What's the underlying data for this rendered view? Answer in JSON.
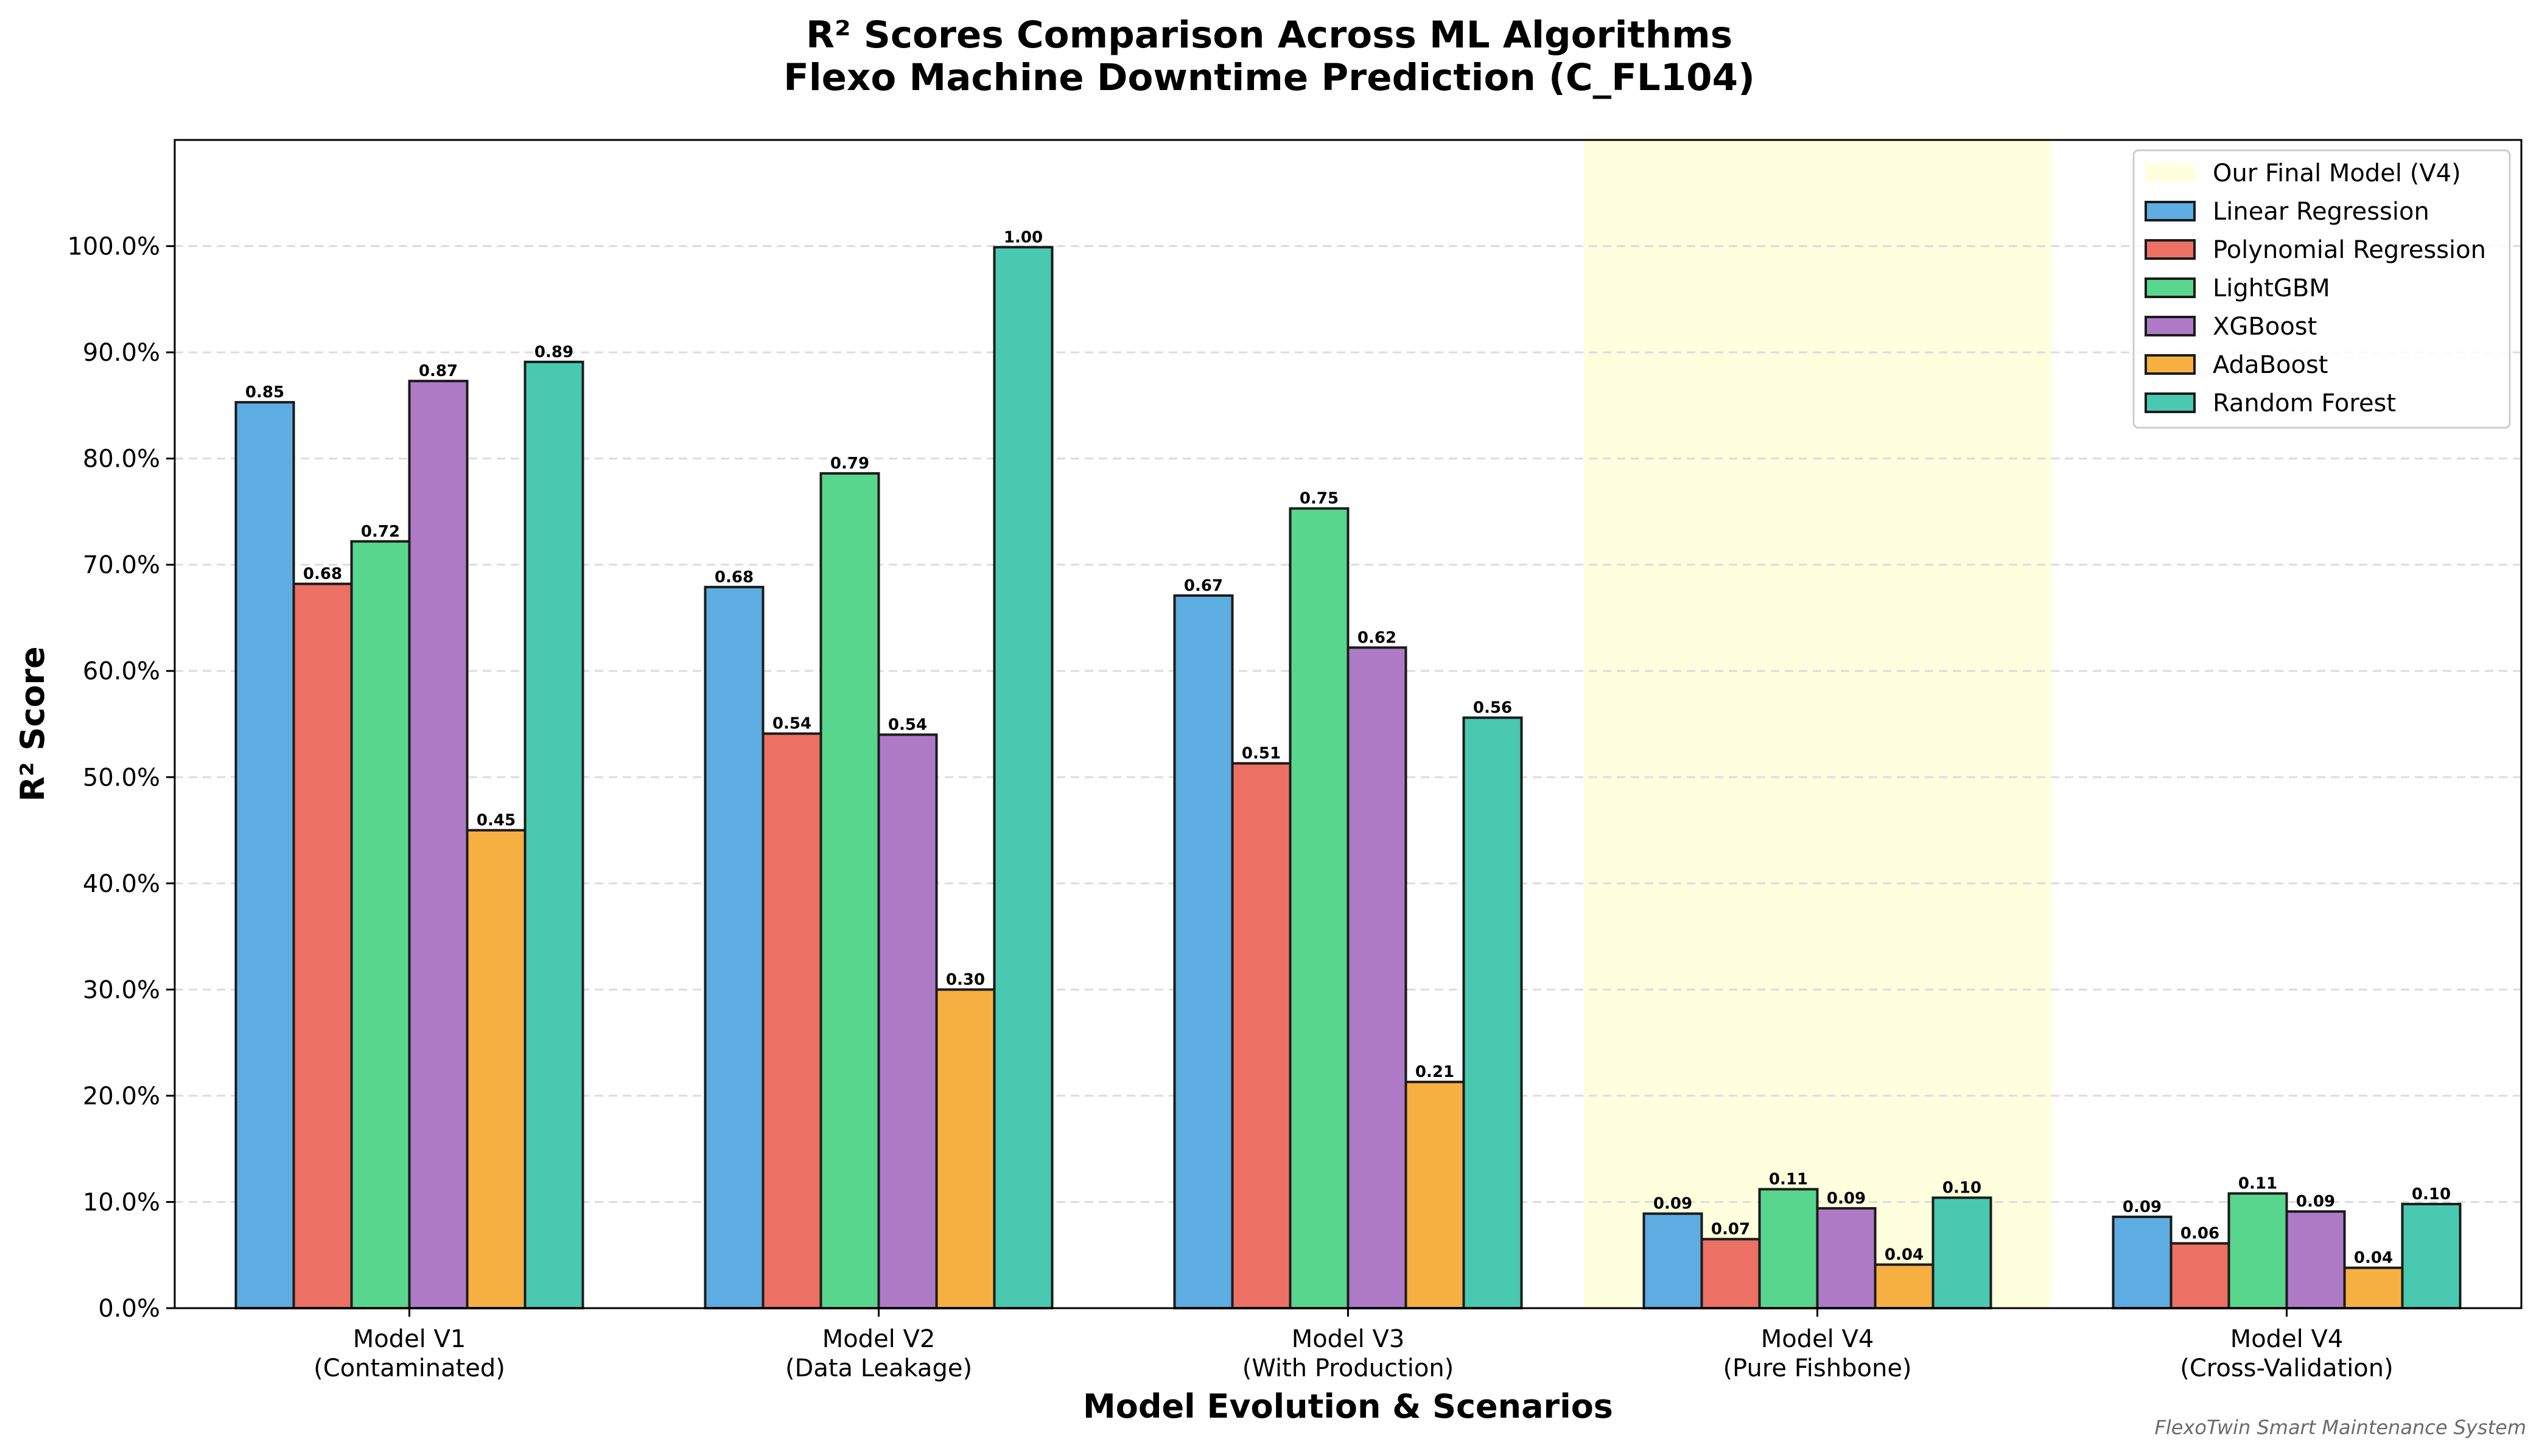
{
  "chart_data": {
    "type": "bar",
    "title": [
      "R² Scores Comparison Across ML Algorithms",
      "Flexo Machine Downtime Prediction (C_FL104)"
    ],
    "xlabel": "Model Evolution & Scenarios",
    "ylabel": "R² Score",
    "ylim": [
      0,
      1.1
    ],
    "yticks": [
      0.0,
      0.1,
      0.2,
      0.3,
      0.4,
      0.5,
      0.6,
      0.7,
      0.8,
      0.9,
      1.0
    ],
    "ytick_labels": [
      "0.0%",
      "10.0%",
      "20.0%",
      "30.0%",
      "40.0%",
      "50.0%",
      "60.0%",
      "70.0%",
      "80.0%",
      "90.0%",
      "100.0%"
    ],
    "grid": "horizontal dashed",
    "legend_position": "top-right",
    "categories": [
      [
        "Model V1",
        "(Contaminated)"
      ],
      [
        "Model V2",
        "(Data Leakage)"
      ],
      [
        "Model V3",
        "(With Production)"
      ],
      [
        "Model V4",
        "(Pure Fishbone)"
      ],
      [
        "Model V4",
        "(Cross-Validation)"
      ]
    ],
    "highlight": {
      "label": "Our Final Model (V4)",
      "category_index": 3,
      "color": "#ffffdd"
    },
    "series": [
      {
        "name": "Linear Regression",
        "color": "#5dade2",
        "values": [
          0.853,
          0.679,
          0.671,
          0.089,
          0.086
        ],
        "labels": [
          "0.85",
          "0.68",
          "0.67",
          "0.09",
          "0.09"
        ]
      },
      {
        "name": "Polynomial Regression",
        "color": "#ec7063",
        "values": [
          0.682,
          0.541,
          0.513,
          0.065,
          0.061
        ],
        "labels": [
          "0.68",
          "0.54",
          "0.51",
          "0.07",
          "0.06"
        ]
      },
      {
        "name": "LightGBM",
        "color": "#58d68d",
        "values": [
          0.722,
          0.786,
          0.753,
          0.112,
          0.108
        ],
        "labels": [
          "0.72",
          "0.79",
          "0.75",
          "0.11",
          "0.11"
        ]
      },
      {
        "name": "XGBoost",
        "color": "#af7ac5",
        "values": [
          0.873,
          0.54,
          0.622,
          0.094,
          0.091
        ],
        "labels": [
          "0.87",
          "0.54",
          "0.62",
          "0.09",
          "0.09"
        ]
      },
      {
        "name": "AdaBoost",
        "color": "#f5b041",
        "values": [
          0.45,
          0.3,
          0.213,
          0.041,
          0.038
        ],
        "labels": [
          "0.45",
          "0.30",
          "0.21",
          "0.04",
          "0.04"
        ]
      },
      {
        "name": "Random Forest",
        "color": "#48c9b0",
        "values": [
          0.891,
          0.999,
          0.556,
          0.104,
          0.098
        ],
        "labels": [
          "0.89",
          "1.00",
          "0.56",
          "0.10",
          "0.10"
        ]
      }
    ],
    "footer": "FlexoTwin Smart Maintenance System"
  }
}
